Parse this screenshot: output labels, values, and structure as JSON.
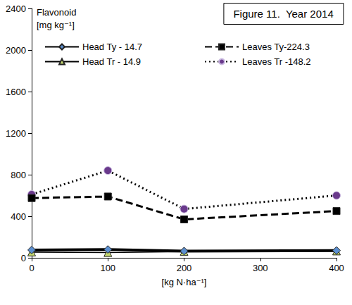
{
  "chart_data": {
    "type": "line",
    "title": "Figure 11.  Year 2014",
    "ylabel": "Flavonoid\n[mg kg⁻¹]",
    "xlabel": "[kg N·ha⁻¹]",
    "x": [
      0,
      100,
      200,
      400
    ],
    "series": [
      {
        "name": "Head Ty - 14.7",
        "color": "#000000",
        "marker": "diamond",
        "line_style": "solid",
        "values": [
          75,
          80,
          65,
          70
        ]
      },
      {
        "name": "Leaves Ty-224.3",
        "color": "#000000",
        "marker": "square",
        "line_style": "dashed",
        "values": [
          575,
          590,
          370,
          450
        ]
      },
      {
        "name": "Head Tr - 14.9",
        "color": "#000000",
        "marker": "triangle",
        "line_style": "solid",
        "values": [
          55,
          50,
          60,
          65
        ]
      },
      {
        "name": "Leaves Tr -148.2",
        "color": "#000000",
        "marker": "circle",
        "line_style": "dotted",
        "values": [
          610,
          840,
          470,
          600
        ]
      }
    ],
    "xlim": [
      0,
      400
    ],
    "xticks": [
      0,
      100,
      200,
      300,
      400
    ],
    "ylim": [
      0,
      2400
    ],
    "yticks": [
      0,
      400,
      800,
      1200,
      1600,
      2000,
      2400
    ],
    "grid": false,
    "legend": "top"
  }
}
